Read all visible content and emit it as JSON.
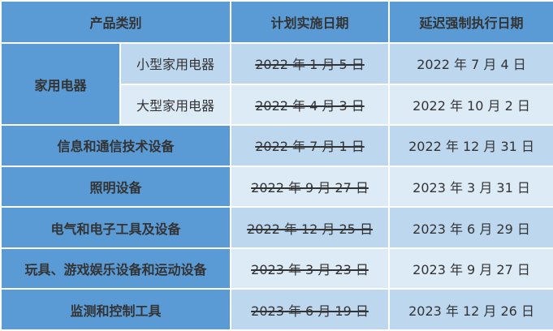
{
  "colors": {
    "header": "#5b9bd5",
    "row_dark": "#bdd7ee",
    "row_light": "#ddebf7"
  },
  "headers": [
    "产品类别",
    "计划实施日期",
    "延迟强制执行日期"
  ],
  "group": {
    "label": "家用电器",
    "subs": [
      {
        "label": "小型家用电器",
        "planned": "2022 年 1 月 5 日",
        "delayed": "2022 年 7 月 4 日"
      },
      {
        "label": "大型家用电器",
        "planned": "2022 年 4 月 3 日",
        "delayed": "2022 年 10 月 2 日"
      }
    ]
  },
  "rows": [
    {
      "category": "信息和通信技术设备",
      "planned": "2022 年 7 月 1 日",
      "delayed": "2022 年 12 月 31 日"
    },
    {
      "category": "照明设备",
      "planned": "2022 年 9 月 27 日",
      "delayed": "2023 年 3 月 31 日"
    },
    {
      "category": "电气和电子工具及设备",
      "planned": "2022 年 12 月 25 日",
      "delayed": "2023 年 6 月 29 日"
    },
    {
      "category": "玩具、游戏娱乐设备和运动设备",
      "planned": "2023 年 3 月 23 日",
      "delayed": "2023 年 9 月 27 日"
    },
    {
      "category": "监测和控制工具",
      "planned": "2023 年 6 月 19 日",
      "delayed": "2023 年 12 月 26 日"
    }
  ]
}
